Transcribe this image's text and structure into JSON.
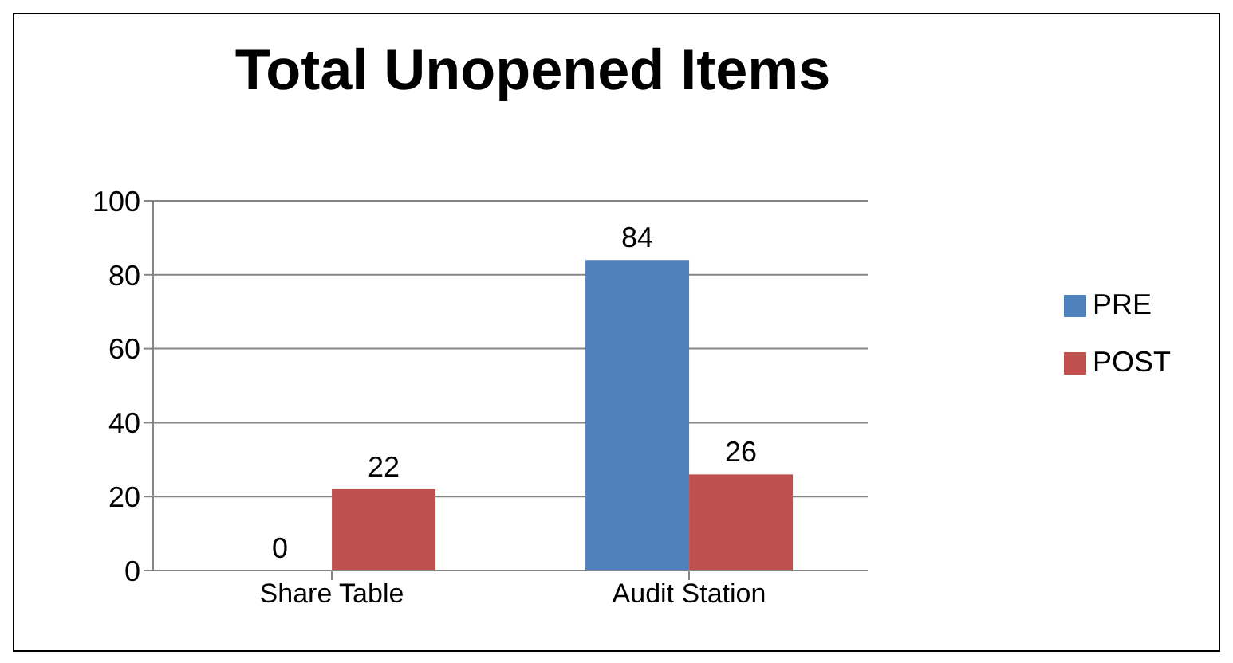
{
  "chart_data": {
    "type": "bar",
    "title": "Total Unopened Items",
    "categories": [
      "Share Table",
      "Audit Station"
    ],
    "series": [
      {
        "name": "PRE",
        "color": "#4f81bd",
        "values": [
          0,
          84
        ]
      },
      {
        "name": "POST",
        "color": "#c0504d",
        "values": [
          22,
          26
        ]
      }
    ],
    "ylim": [
      0,
      100
    ],
    "yticks": [
      0,
      20,
      40,
      60,
      80,
      100
    ],
    "grid": "y",
    "legend": "right",
    "data_labels": true
  }
}
